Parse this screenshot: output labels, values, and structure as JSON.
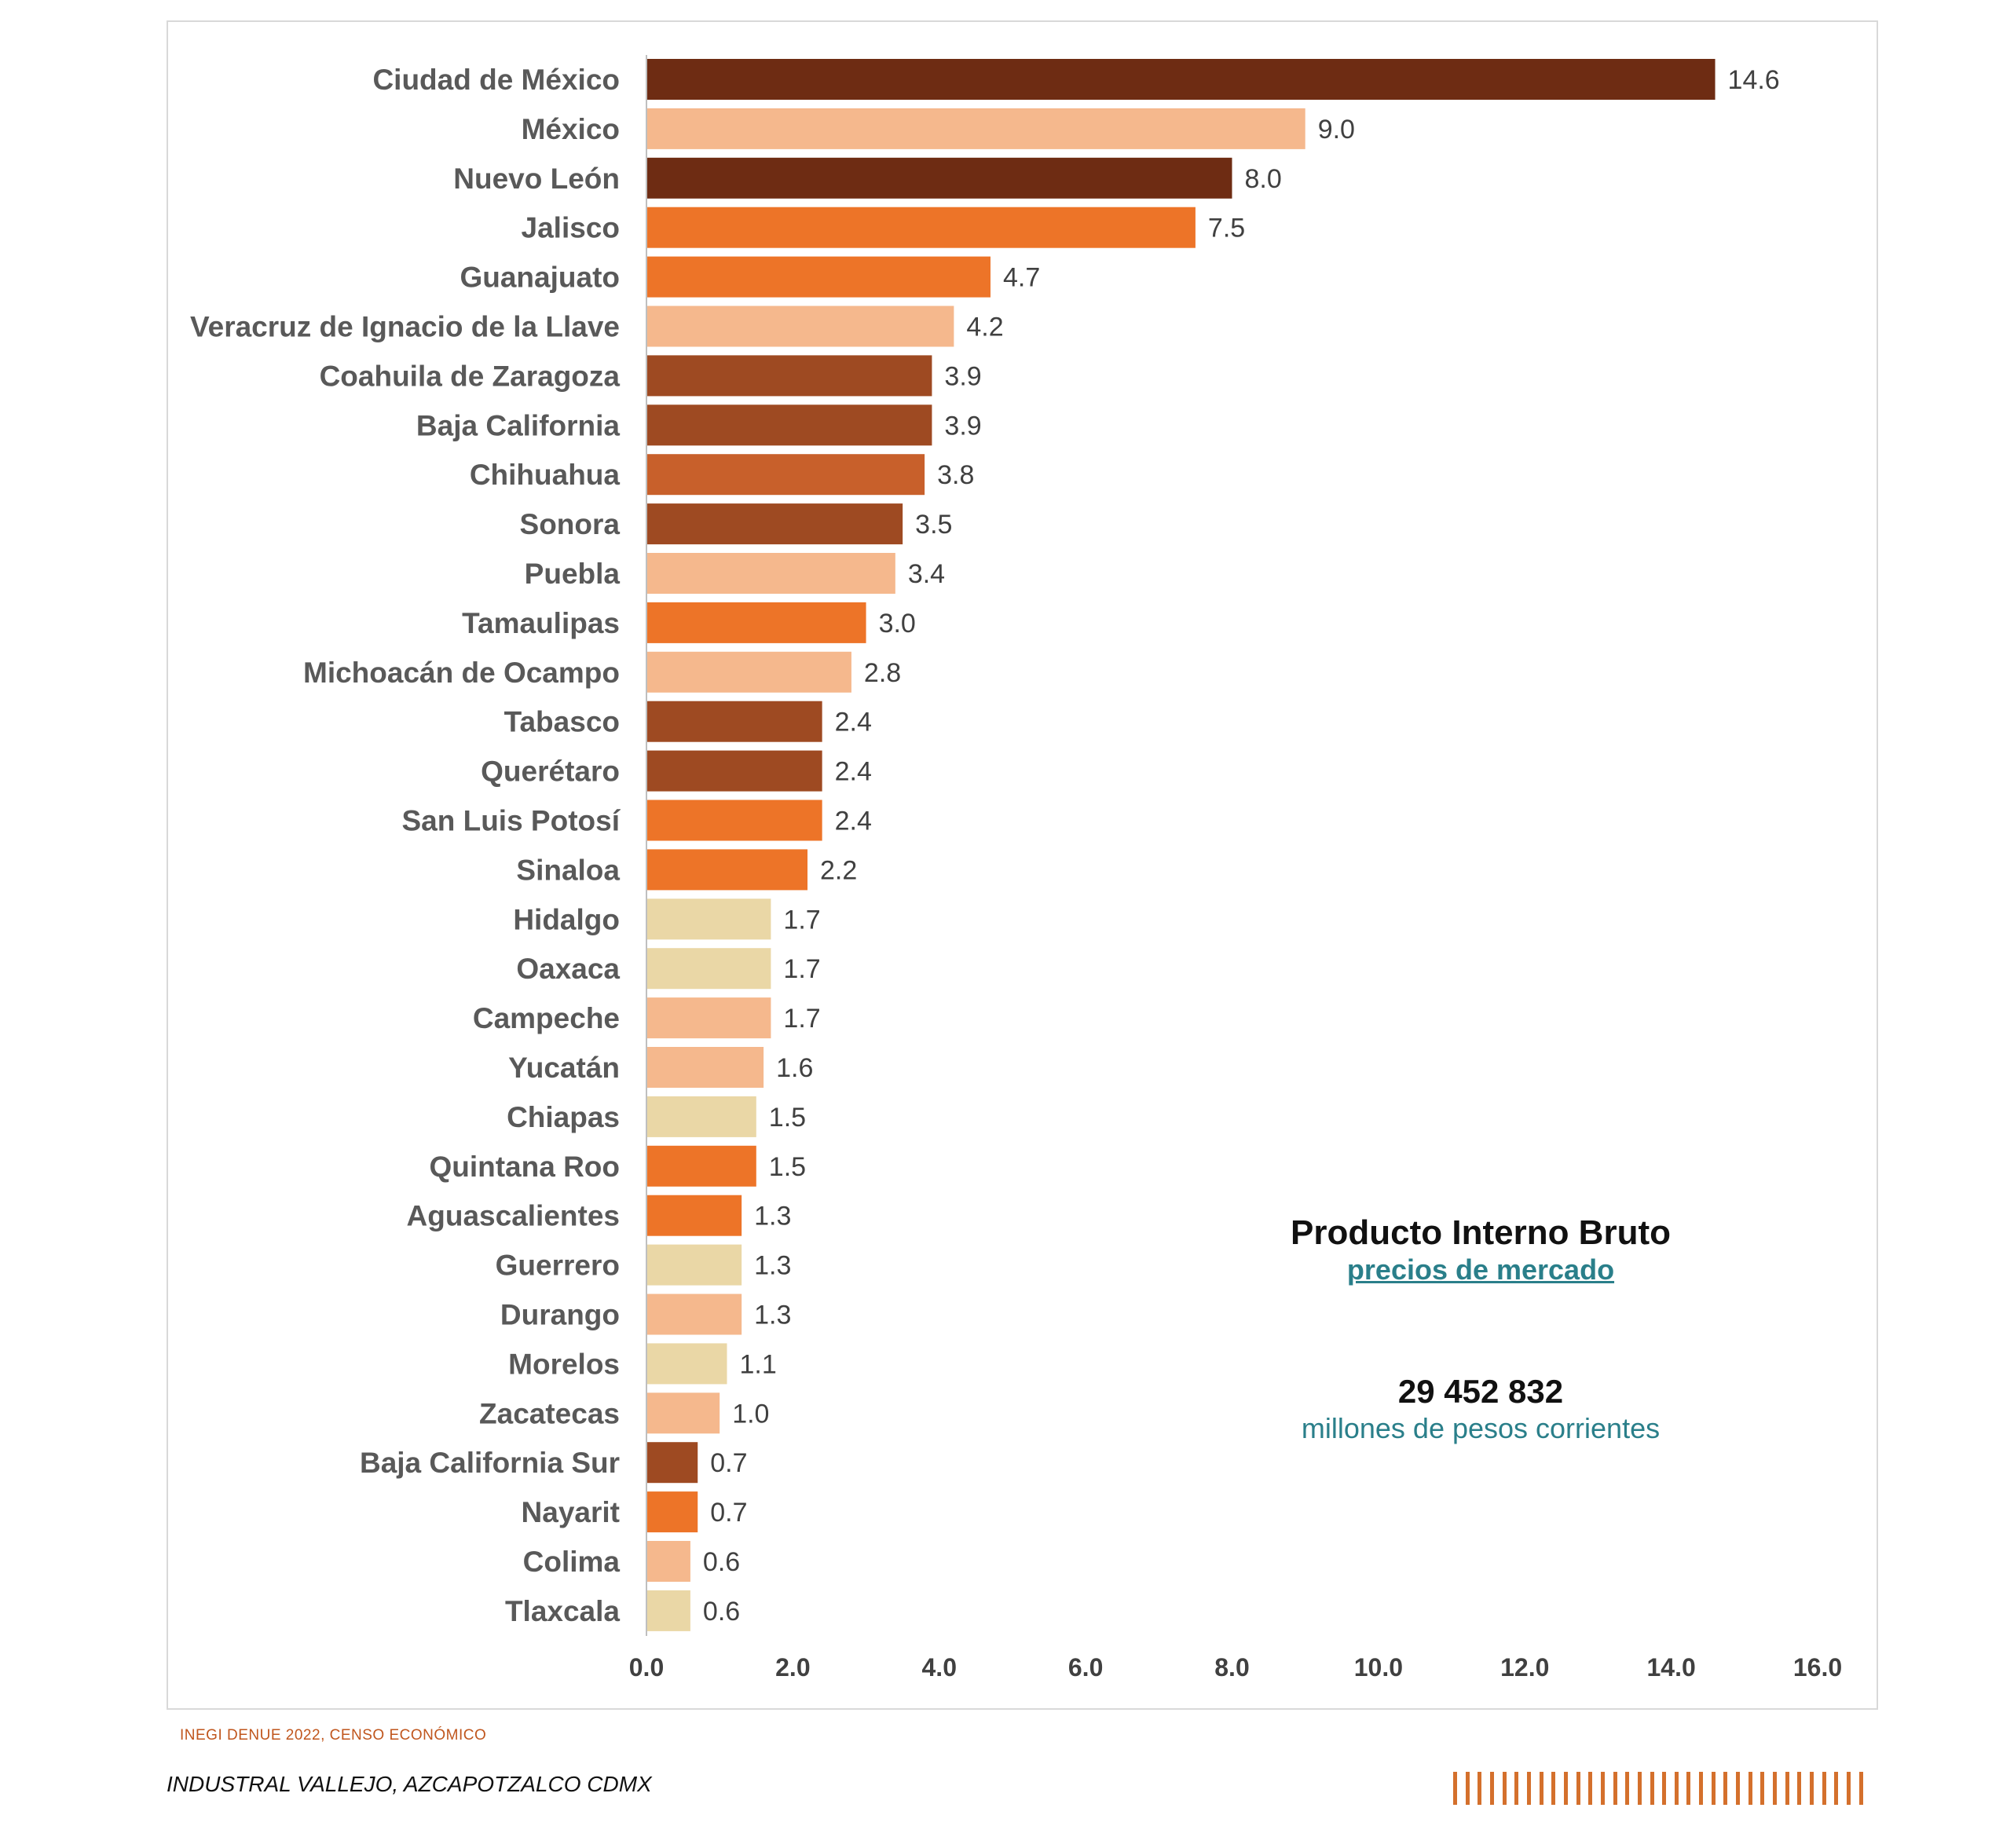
{
  "chart_data": {
    "type": "bar",
    "orientation": "horizontal",
    "title": "Producto Interno Bruto",
    "categories": [
      "Ciudad de México",
      "México",
      "Nuevo León",
      "Jalisco",
      "Guanajuato",
      "Veracruz de Ignacio de la Llave",
      "Coahuila de Zaragoza",
      "Baja California",
      "Chihuahua",
      "Sonora",
      "Puebla",
      "Tamaulipas",
      "Michoacán de Ocampo",
      "Tabasco",
      "Querétaro",
      "San Luis Potosí",
      "Sinaloa",
      "Hidalgo",
      "Oaxaca",
      "Campeche",
      "Yucatán",
      "Chiapas",
      "Quintana Roo",
      "Aguascalientes",
      "Guerrero",
      "Durango",
      "Morelos",
      "Zacatecas",
      "Baja California Sur",
      "Nayarit",
      "Colima",
      "Tlaxcala"
    ],
    "values": [
      14.6,
      9.0,
      8.0,
      7.5,
      4.7,
      4.2,
      3.9,
      3.9,
      3.8,
      3.5,
      3.4,
      3.0,
      2.8,
      2.4,
      2.4,
      2.4,
      2.2,
      1.7,
      1.7,
      1.7,
      1.6,
      1.5,
      1.5,
      1.3,
      1.3,
      1.3,
      1.1,
      1.0,
      0.7,
      0.7,
      0.6,
      0.6
    ],
    "value_labels": [
      "14.6",
      "9.0",
      "8.0",
      "7.5",
      "4.7",
      "4.2",
      "3.9",
      "3.9",
      "3.8",
      "3.5",
      "3.4",
      "3.0",
      "2.8",
      "2.4",
      "2.4",
      "2.4",
      "2.2",
      "1.7",
      "1.7",
      "1.7",
      "1.6",
      "1.5",
      "1.5",
      "1.3",
      "1.3",
      "1.3",
      "1.1",
      "1.0",
      "0.7",
      "0.7",
      "0.6",
      "0.6"
    ],
    "bar_colors": [
      "#6e2c13",
      "#f5b88d",
      "#6e2c13",
      "#ed7428",
      "#ed7428",
      "#f5b88d",
      "#9e4a22",
      "#9e4a22",
      "#c8602b",
      "#9e4a22",
      "#f5b88d",
      "#ed7428",
      "#f5b88d",
      "#9e4a22",
      "#9e4a22",
      "#ed7428",
      "#ed7428",
      "#ead7a6",
      "#ead7a6",
      "#f5b88d",
      "#f5b88d",
      "#ead7a6",
      "#ed7428",
      "#ed7428",
      "#ead7a6",
      "#f5b88d",
      "#ead7a6",
      "#f5b88d",
      "#9e4a22",
      "#ed7428",
      "#f5b88d",
      "#ead7a6"
    ],
    "xlim": [
      0,
      16
    ],
    "xticks": [
      0,
      2,
      4,
      6,
      8,
      10,
      12,
      14,
      16
    ],
    "xtick_labels": [
      "0.0",
      "2.0",
      "4.0",
      "6.0",
      "8.0",
      "10.0",
      "12.0",
      "14.0",
      "16.0"
    ],
    "grid": false,
    "xlabel": "",
    "ylabel": ""
  },
  "annotation": {
    "title": "Producto Interno Bruto",
    "link": "precios de mercado",
    "total": "29 452 832",
    "unit": "millones de pesos corrientes"
  },
  "footer": {
    "source": "INEGI  DENUE 2022, CENSO ECONÓMICO",
    "location": "INDUSTRAL VALLEJO, AZCAPOTZALCO CDMX",
    "accent_color": "#d4702c"
  }
}
